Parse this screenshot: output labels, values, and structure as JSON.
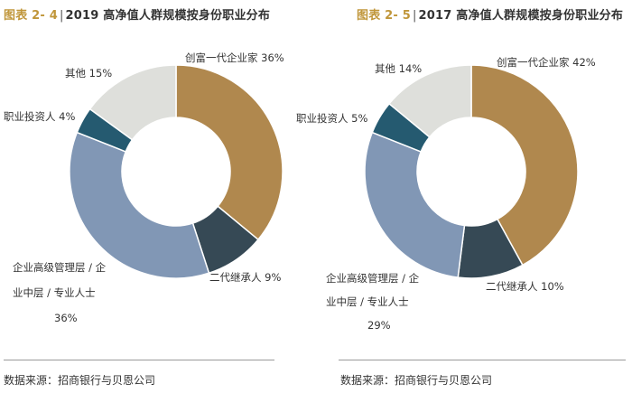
{
  "chart_data": [
    {
      "type": "pie",
      "figure_no": "图表 2- 4",
      "title": "2019 高净值人群规模按身份职业分布",
      "slices": [
        {
          "label": "创富一代企业家",
          "value": 36,
          "display": "创富一代企业家 36%",
          "color": "#b0884e"
        },
        {
          "label": "二代继承人",
          "value": 9,
          "display": "二代继承人 9%",
          "color": "#364955"
        },
        {
          "label": "企业高级管理层 / 企业中层 / 专业人士",
          "value": 36,
          "display": [
            "企业高级管理层 / 企",
            "业中层 / 专业人士",
            "36%"
          ],
          "color": "#8197b5"
        },
        {
          "label": "职业投资人",
          "value": 4,
          "display": "职业投资人 4%",
          "color": "#255a70"
        },
        {
          "label": "其他",
          "value": 15,
          "display": "其他 15%",
          "color": "#dedfdb"
        }
      ],
      "source": "数据来源：招商银行与贝恩公司"
    },
    {
      "type": "pie",
      "figure_no": "图表 2- 5",
      "title": "2017 高净值人群规模按身份职业分布",
      "slices": [
        {
          "label": "创富一代企业家",
          "value": 42,
          "display": "创富一代企业家 42%",
          "color": "#b0884e"
        },
        {
          "label": "二代继承人",
          "value": 10,
          "display": "二代继承人 10%",
          "color": "#364955"
        },
        {
          "label": "企业高级管理层 / 企业中层 / 专业人士",
          "value": 29,
          "display": [
            "企业高级管理层 / 企",
            "业中层 / 专业人士",
            "29%"
          ],
          "color": "#8197b5"
        },
        {
          "label": "职业投资人",
          "value": 5,
          "display": "职业投资人 5%",
          "color": "#255a70"
        },
        {
          "label": "其他",
          "value": 14,
          "display": "其他 14%",
          "color": "#dedfdb"
        }
      ],
      "source": "数据来源：招商银行与贝恩公司"
    }
  ]
}
